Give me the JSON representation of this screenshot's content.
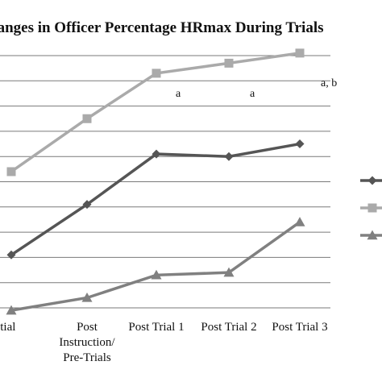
{
  "chart_data": {
    "type": "line",
    "title": "hanges in Officer Percentage HRmax During Trials",
    "categories": [
      "nitial",
      "Post Instruction/ Pre-Trials",
      "Post Trial 1",
      "Post Trial 2",
      "Post Trial 3"
    ],
    "category_lines": [
      [
        "nitial"
      ],
      [
        "Post",
        "Instruction/",
        "Pre-Trials"
      ],
      [
        "Post Trial 1"
      ],
      [
        "Post Trial 2"
      ],
      [
        "Post Trial 3"
      ]
    ],
    "ylim": [
      0,
      10
    ],
    "grid": true,
    "legend": "right",
    "series": [
      {
        "marker": "diamond",
        "color": "#555555",
        "values": [
          2.1,
          4.1,
          6.1,
          6.0,
          6.5
        ]
      },
      {
        "marker": "square",
        "color": "#aaaaaa",
        "values": [
          5.4,
          7.5,
          9.3,
          9.7,
          10.1
        ]
      },
      {
        "marker": "triangle",
        "color": "#808080",
        "values": [
          -0.1,
          0.4,
          1.3,
          1.4,
          3.4
        ]
      }
    ],
    "annotations": [
      {
        "text": "a",
        "category": 2
      },
      {
        "text": "a",
        "category": 3
      },
      {
        "text": "a, b",
        "category": 4
      }
    ]
  }
}
